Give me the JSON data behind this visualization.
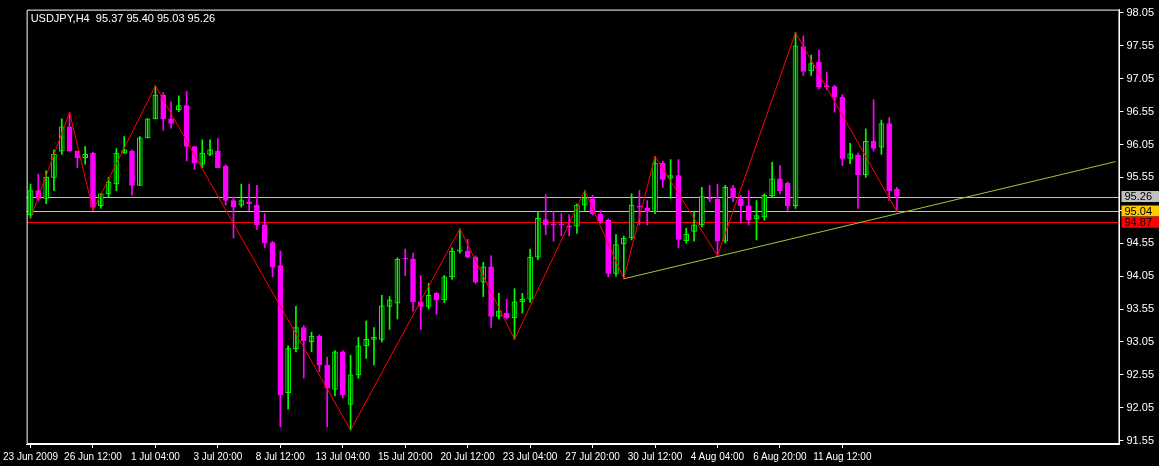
{
  "chart_data": {
    "type": "candlestick",
    "title": "USDJPY,H4  95.37 95.40 95.03 95.26",
    "categories": [
      "23 Jun 2009",
      null,
      null,
      null,
      null,
      null,
      null,
      null,
      "26 Jun 12:00",
      null,
      null,
      null,
      null,
      null,
      null,
      null,
      "1 Jul 04:00",
      null,
      null,
      null,
      null,
      null,
      null,
      null,
      "3 Jul 20:00",
      null,
      null,
      null,
      null,
      null,
      null,
      null,
      "8 Jul 12:00",
      null,
      null,
      null,
      null,
      null,
      null,
      null,
      "13 Jul 04:00",
      null,
      null,
      null,
      null,
      null,
      null,
      null,
      "15 Jul 20:00",
      null,
      null,
      null,
      null,
      null,
      null,
      null,
      "20 Jul 12:00",
      null,
      null,
      null,
      null,
      null,
      null,
      null,
      "23 Jul 04:00",
      null,
      null,
      null,
      null,
      null,
      null,
      null,
      "27 Jul 20:00",
      null,
      null,
      null,
      null,
      null,
      null,
      null,
      "30 Jul 12:00",
      null,
      null,
      null,
      null,
      null,
      null,
      null,
      "4 Aug 04:00",
      null,
      null,
      null,
      null,
      null,
      null,
      null,
      "6 Aug 20:00",
      null,
      null,
      null,
      null,
      null,
      null,
      null,
      "11 Aug 12:00",
      null,
      null,
      null,
      null,
      null,
      null,
      null,
      null,
      null,
      null,
      null,
      null,
      null,
      null,
      null,
      null,
      null,
      null,
      null,
      null,
      null,
      null,
      null,
      null,
      null,
      null,
      null,
      null,
      null,
      null,
      null,
      null,
      null,
      null,
      null
    ],
    "ohlc": [
      [
        94.98,
        95.45,
        94.93,
        95.35
      ],
      [
        95.35,
        95.6,
        95.2,
        95.23
      ],
      [
        95.23,
        95.65,
        95.15,
        95.55
      ],
      [
        95.55,
        95.97,
        95.35,
        95.9
      ],
      [
        95.95,
        96.44,
        95.9,
        96.32
      ],
      [
        96.32,
        96.54,
        95.95,
        95.95
      ],
      [
        95.95,
        95.95,
        95.7,
        95.85
      ],
      [
        95.85,
        96.02,
        95.75,
        95.9
      ],
      [
        95.92,
        95.93,
        95.05,
        95.1
      ],
      [
        95.12,
        95.3,
        95.08,
        95.3
      ],
      [
        95.3,
        95.55,
        95.25,
        95.48
      ],
      [
        95.45,
        95.99,
        95.35,
        95.92
      ],
      [
        95.92,
        96.17,
        95.92,
        95.97
      ],
      [
        95.95,
        95.97,
        95.28,
        95.43
      ],
      [
        95.43,
        96.17,
        95.43,
        96.15
      ],
      [
        96.15,
        96.44,
        96.15,
        96.44
      ],
      [
        96.44,
        96.94,
        96.44,
        96.8
      ],
      [
        96.8,
        96.84,
        96.27,
        96.44
      ],
      [
        96.44,
        96.7,
        96.3,
        96.37
      ],
      [
        96.58,
        96.79,
        96.55,
        96.64
      ],
      [
        96.64,
        96.86,
        95.8,
        96.02
      ],
      [
        96.02,
        96.02,
        95.67,
        95.77
      ],
      [
        95.75,
        96.12,
        95.7,
        95.92
      ],
      [
        95.9,
        96.12,
        95.88,
        95.97
      ],
      [
        95.95,
        96.14,
        95.7,
        95.7
      ],
      [
        95.72,
        95.74,
        95.13,
        95.2
      ],
      [
        95.2,
        95.25,
        94.63,
        95.1
      ],
      [
        95.13,
        95.45,
        95.1,
        95.2
      ],
      [
        95.18,
        95.45,
        95.05,
        95.15
      ],
      [
        95.13,
        95.43,
        94.76,
        94.83
      ],
      [
        94.83,
        95.0,
        94.48,
        94.56
      ],
      [
        94.56,
        94.58,
        94.04,
        94.19
      ],
      [
        94.21,
        94.43,
        91.76,
        92.25
      ],
      [
        92.28,
        92.99,
        92.03,
        92.95
      ],
      [
        92.95,
        93.59,
        92.9,
        93.27
      ],
      [
        93.27,
        93.3,
        92.5,
        93.07
      ],
      [
        93.05,
        93.2,
        92.9,
        93.14
      ],
      [
        93.14,
        93.16,
        92.6,
        92.7
      ],
      [
        92.7,
        92.82,
        91.76,
        92.35
      ],
      [
        92.33,
        92.92,
        92.23,
        92.9
      ],
      [
        92.9,
        92.92,
        92.2,
        92.25
      ],
      [
        92.1,
        92.85,
        91.71,
        92.55
      ],
      [
        92.55,
        93.12,
        92.5,
        92.99
      ],
      [
        92.99,
        93.37,
        92.8,
        93.09
      ],
      [
        93.09,
        93.27,
        92.7,
        93.12
      ],
      [
        93.09,
        93.76,
        93.05,
        93.6
      ],
      [
        93.59,
        93.74,
        93.24,
        93.69
      ],
      [
        93.64,
        94.33,
        93.4,
        94.31
      ],
      [
        94.31,
        94.46,
        94.06,
        94.31
      ],
      [
        94.31,
        94.4,
        93.52,
        93.66
      ],
      [
        93.66,
        94.06,
        93.24,
        93.59
      ],
      [
        93.59,
        93.94,
        93.55,
        93.76
      ],
      [
        93.79,
        93.8,
        93.47,
        93.69
      ],
      [
        93.69,
        94.06,
        93.65,
        94.04
      ],
      [
        94.04,
        94.48,
        94.0,
        94.43
      ],
      [
        94.43,
        94.77,
        94.4,
        94.45
      ],
      [
        94.43,
        94.61,
        94.33,
        94.34
      ],
      [
        94.34,
        94.36,
        93.94,
        93.96
      ],
      [
        93.96,
        94.26,
        93.74,
        94.19
      ],
      [
        94.19,
        94.36,
        93.27,
        93.44
      ],
      [
        93.44,
        93.79,
        93.4,
        93.52
      ],
      [
        93.49,
        93.7,
        93.4,
        93.42
      ],
      [
        93.42,
        93.86,
        93.09,
        93.66
      ],
      [
        93.66,
        93.79,
        93.49,
        93.7
      ],
      [
        93.7,
        94.46,
        93.65,
        94.34
      ],
      [
        94.34,
        95.03,
        94.3,
        94.93
      ],
      [
        94.91,
        95.29,
        94.68,
        94.83
      ],
      [
        94.84,
        95.03,
        94.58,
        94.83
      ],
      [
        94.83,
        95.0,
        94.66,
        94.83
      ],
      [
        94.81,
        94.98,
        94.66,
        94.8
      ],
      [
        94.81,
        95.15,
        94.7,
        95.13
      ],
      [
        95.13,
        95.35,
        95.05,
        95.23
      ],
      [
        95.23,
        95.28,
        94.98,
        95.0
      ],
      [
        94.99,
        95.05,
        94.85,
        94.88
      ],
      [
        94.9,
        94.92,
        94.04,
        94.09
      ],
      [
        94.09,
        94.68,
        94.05,
        94.53
      ],
      [
        94.54,
        94.66,
        94.01,
        94.63
      ],
      [
        94.63,
        95.3,
        94.6,
        95.13
      ],
      [
        95.1,
        95.35,
        94.83,
        95.1
      ],
      [
        95.09,
        95.2,
        94.83,
        95.03
      ],
      [
        95.03,
        95.87,
        95.0,
        95.77
      ],
      [
        95.77,
        95.8,
        95.4,
        95.52
      ],
      [
        95.54,
        95.82,
        95.23,
        95.58
      ],
      [
        95.58,
        95.82,
        94.48,
        94.61
      ],
      [
        94.59,
        94.78,
        94.55,
        94.69
      ],
      [
        94.73,
        95.03,
        94.58,
        94.83
      ],
      [
        94.83,
        95.4,
        94.8,
        95.26
      ],
      [
        95.23,
        95.43,
        95.18,
        95.22
      ],
      [
        95.22,
        95.45,
        94.36,
        94.58
      ],
      [
        94.58,
        95.43,
        94.55,
        95.4
      ],
      [
        95.39,
        95.43,
        95.18,
        95.24
      ],
      [
        95.23,
        95.28,
        94.86,
        95.12
      ],
      [
        95.12,
        95.35,
        94.83,
        94.9
      ],
      [
        94.92,
        95.2,
        94.6,
        94.97
      ],
      [
        94.95,
        95.3,
        94.9,
        95.28
      ],
      [
        95.27,
        95.78,
        95.25,
        95.53
      ],
      [
        95.53,
        95.73,
        95.3,
        95.35
      ],
      [
        95.46,
        95.48,
        95.05,
        95.12
      ],
      [
        95.12,
        97.75,
        95.08,
        97.55
      ],
      [
        97.54,
        97.7,
        97.1,
        97.16
      ],
      [
        97.17,
        97.41,
        97.1,
        97.28
      ],
      [
        97.3,
        97.49,
        96.9,
        96.93
      ],
      [
        96.93,
        97.15,
        96.88,
        96.93
      ],
      [
        96.93,
        96.95,
        96.54,
        96.77
      ],
      [
        96.77,
        96.81,
        95.73,
        95.84
      ],
      [
        95.84,
        96.07,
        95.76,
        95.91
      ],
      [
        95.89,
        95.92,
        95.08,
        95.59
      ],
      [
        95.59,
        96.29,
        95.55,
        96.1
      ],
      [
        96.1,
        96.73,
        95.95,
        95.99
      ],
      [
        96.01,
        96.42,
        95.9,
        96.37
      ],
      [
        96.37,
        96.46,
        95.2,
        95.35
      ],
      [
        95.37,
        95.4,
        95.03,
        95.26
      ],
      null,
      null,
      null,
      null,
      null,
      null,
      null,
      null,
      null,
      null,
      null,
      null,
      null,
      null,
      null,
      null,
      null,
      null,
      null,
      null,
      null,
      null,
      null,
      null,
      null,
      null,
      null,
      null
    ],
    "colors": [
      "#00ff00",
      "#ff00ff",
      "#00ff00",
      "#00ff00",
      "#00ff00",
      "#ff00ff",
      "#ff00ff",
      "#00ff00",
      "#ff00ff",
      "#00ff00",
      "#00ff00",
      "#00ff00",
      "#00ff00",
      "#ff00ff",
      "#00ff00",
      "#00ff00",
      "#00ff00",
      "#ff00ff",
      "#ff00ff",
      "#00ff00",
      "#ff00ff",
      "#ff00ff",
      "#00ff00",
      "#00ff00",
      "#ff00ff",
      "#ff00ff",
      "#ff00ff",
      "#00ff00",
      "#ff00ff",
      "#ff00ff",
      "#ff00ff",
      "#ff00ff",
      "#ff00ff",
      "#00ff00",
      "#00ff00",
      "#ff00ff",
      "#00ff00",
      "#ff00ff",
      "#ff00ff",
      "#00ff00",
      "#ff00ff",
      "#00ff00",
      "#00ff00",
      "#00ff00",
      "#00ff00",
      "#00ff00",
      "#00ff00",
      "#00ff00",
      "#ff00ff",
      "#ff00ff",
      "#ff00ff",
      "#00ff00",
      "#ff00ff",
      "#00ff00",
      "#00ff00",
      "#00ff00",
      "#ff00ff",
      "#ff00ff",
      "#00ff00",
      "#ff00ff",
      "#00ff00",
      "#ff00ff",
      "#00ff00",
      "#00ff00",
      "#00ff00",
      "#00ff00",
      "#ff00ff",
      "#ff00ff",
      "#ff00ff",
      "#ff00ff",
      "#00ff00",
      "#00ff00",
      "#ff00ff",
      "#ff00ff",
      "#ff00ff",
      "#00ff00",
      "#00ff00",
      "#00ff00",
      "#ff00ff",
      "#ff00ff",
      "#00ff00",
      "#ff00ff",
      "#00ff00",
      "#ff00ff",
      "#00ff00",
      "#00ff00",
      "#00ff00",
      "#ff00ff",
      "#ff00ff",
      "#00ff00",
      "#ff00ff",
      "#ff00ff",
      "#ff00ff",
      "#00ff00",
      "#00ff00",
      "#00ff00",
      "#ff00ff",
      "#ff00ff",
      "#00ff00",
      "#ff00ff",
      "#00ff00",
      "#ff00ff",
      "#ff00ff",
      "#ff00ff",
      "#ff00ff",
      "#00ff00",
      "#ff00ff",
      "#00ff00",
      "#ff00ff",
      "#00ff00",
      "#ff00ff",
      "#ff00ff",
      null,
      null,
      null,
      null,
      null,
      null,
      null,
      null,
      null,
      null,
      null,
      null,
      null,
      null,
      null,
      null,
      null,
      null,
      null,
      null,
      null,
      null,
      null,
      null,
      null,
      null,
      null,
      null
    ],
    "series": [
      {
        "type": "line",
        "color": "#ff0000",
        "values": [
          94.93,
          null,
          null,
          null,
          null,
          96.54,
          null,
          null,
          95.05,
          null,
          null,
          null,
          null,
          null,
          null,
          null,
          96.94,
          null,
          null,
          null,
          null,
          null,
          null,
          null,
          null,
          null,
          null,
          null,
          null,
          null,
          null,
          null,
          null,
          null,
          null,
          null,
          null,
          null,
          null,
          null,
          null,
          91.71,
          null,
          null,
          null,
          null,
          null,
          null,
          null,
          null,
          null,
          null,
          null,
          null,
          null,
          94.77,
          null,
          null,
          null,
          null,
          null,
          null,
          93.09,
          null,
          null,
          null,
          null,
          null,
          null,
          null,
          null,
          95.35,
          null,
          null,
          null,
          null,
          94.01,
          null,
          null,
          null,
          95.87,
          null,
          null,
          null,
          null,
          null,
          null,
          null,
          94.36,
          null,
          null,
          null,
          null,
          null,
          null,
          null,
          null,
          null,
          97.75,
          null,
          null,
          null,
          null,
          null,
          null,
          null,
          null,
          null,
          null,
          null,
          null,
          95.03,
          null,
          null,
          null,
          null,
          null,
          null,
          null,
          null,
          null,
          null,
          null,
          null,
          null,
          null,
          null,
          null,
          null,
          null,
          null,
          null,
          null,
          null,
          null,
          null,
          null,
          null,
          null,
          null
        ]
      },
      {
        "type": "line",
        "color": "#9acd32",
        "values": [
          null,
          null,
          null,
          null,
          null,
          null,
          null,
          null,
          null,
          null,
          null,
          null,
          null,
          null,
          null,
          null,
          null,
          null,
          null,
          null,
          null,
          null,
          null,
          null,
          null,
          null,
          null,
          null,
          null,
          null,
          null,
          null,
          null,
          null,
          null,
          null,
          null,
          null,
          null,
          null,
          null,
          null,
          null,
          null,
          null,
          null,
          null,
          null,
          null,
          null,
          null,
          null,
          null,
          null,
          null,
          null,
          null,
          null,
          null,
          null,
          null,
          null,
          null,
          null,
          null,
          null,
          null,
          null,
          null,
          null,
          null,
          null,
          null,
          null,
          null,
          null,
          94.01,
          null,
          null,
          null,
          null,
          null,
          null,
          null,
          null,
          null,
          null,
          null,
          null,
          null,
          null,
          null,
          null,
          null,
          null,
          null,
          null,
          null,
          null,
          null,
          null,
          null,
          null,
          null,
          null,
          null,
          null,
          null,
          null,
          null,
          null,
          null,
          null,
          null,
          null,
          null,
          null,
          null,
          null,
          null,
          null,
          null,
          null,
          null,
          null,
          null,
          null,
          null,
          null,
          null,
          null,
          null,
          null,
          null,
          null,
          null,
          null,
          null,
          null,
          95.79
        ]
      }
    ],
    "ylim": [
      91.5,
      98.1
    ],
    "yticks": [
      91.55,
      92.05,
      92.55,
      93.05,
      93.55,
      94.05,
      94.55,
      {
        "value": 95.05,
        "label": null
      },
      95.55,
      96.05,
      96.55,
      97.05,
      97.55,
      98.05
    ],
    "ref_lines": [
      {
        "axis": "y",
        "value": 95.26,
        "label": "95.26",
        "color": "#c0c0c0"
      },
      {
        "axis": "y",
        "value": 95.04,
        "label": "95.04",
        "color": "#ffc800"
      },
      {
        "axis": "y",
        "value": 94.87,
        "label": "94.87",
        "color": "#ff0000"
      }
    ],
    "grid": false,
    "legend": false
  }
}
